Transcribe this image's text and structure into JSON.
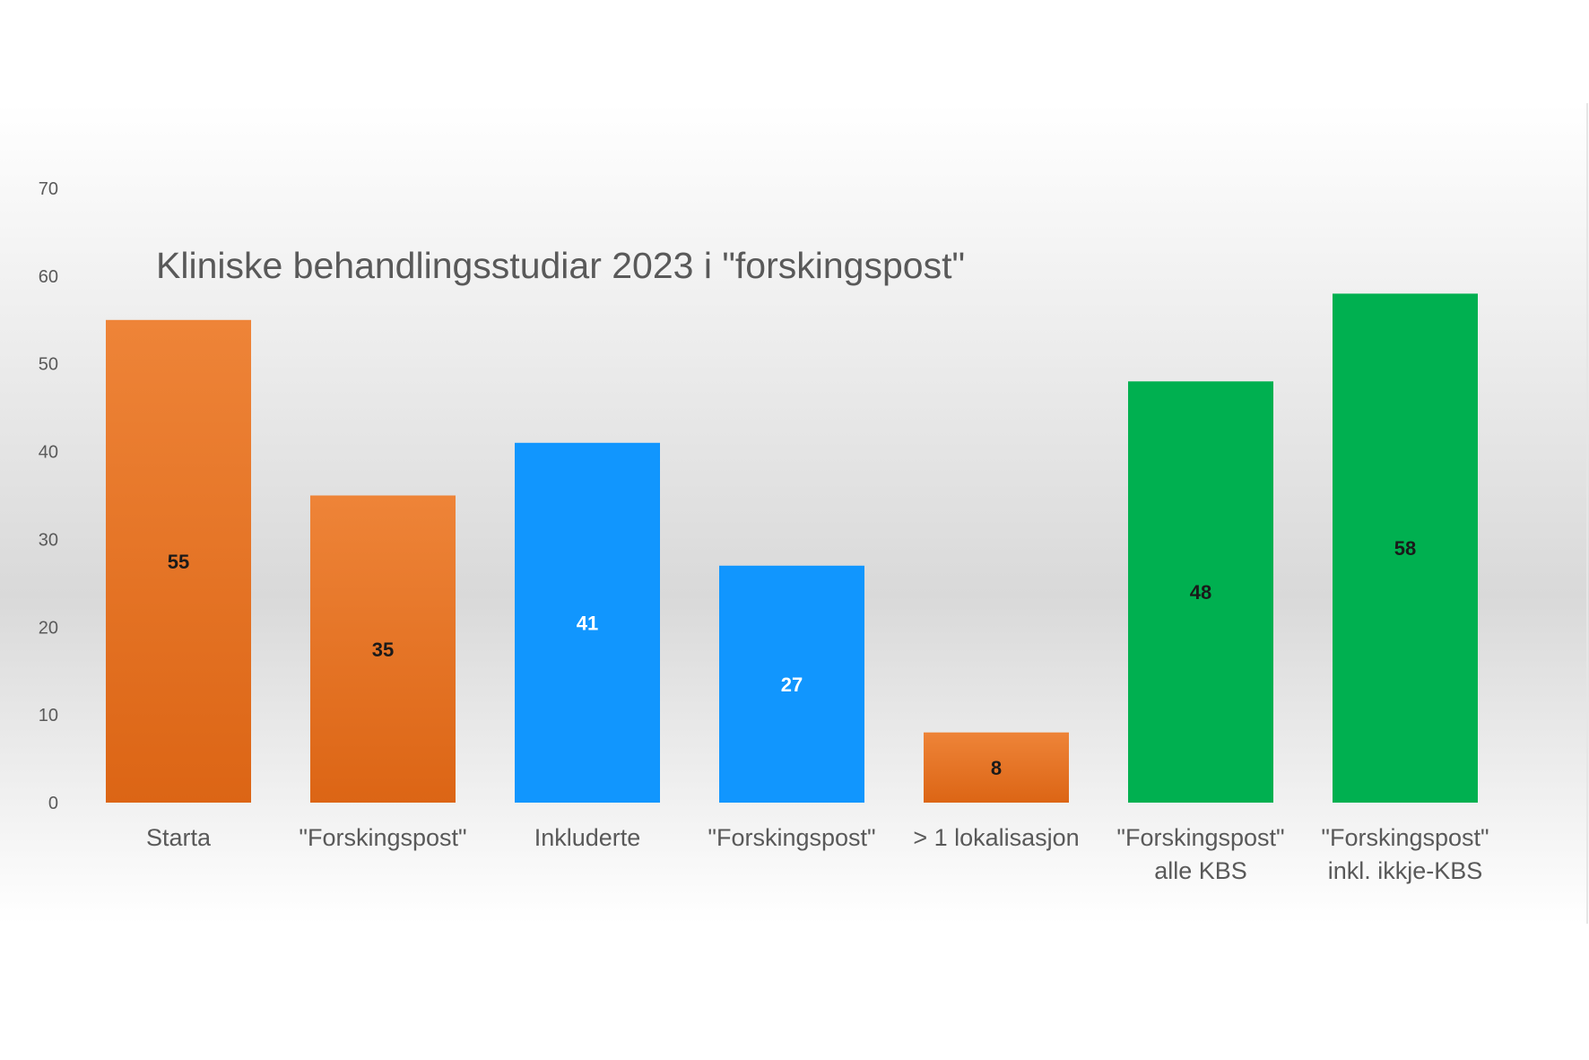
{
  "chart_data": {
    "type": "bar",
    "title": "Kliniske behandlingsstudiar 2023 i \"forskingspost\"",
    "xlabel": "",
    "ylabel": "",
    "ylim": [
      0,
      70
    ],
    "yticks": [
      0,
      10,
      20,
      30,
      40,
      50,
      60,
      70
    ],
    "grid": false,
    "categories": [
      [
        "Starta"
      ],
      [
        "\"Forskingspost\""
      ],
      [
        "Inkluderte"
      ],
      [
        "\"Forskingspost\""
      ],
      [
        "> 1  lokalisasjon"
      ],
      [
        "\"Forskingspost\"",
        "alle KBS"
      ],
      [
        "\"Forskingspost\"",
        "inkl. ikkje-KBS"
      ]
    ],
    "values": [
      55,
      35,
      41,
      27,
      8,
      48,
      58
    ],
    "bar_colors": [
      "orange",
      "orange",
      "blue",
      "blue",
      "orange",
      "green",
      "green"
    ],
    "colors": {
      "orange_top": "#ee8438",
      "orange_bottom": "#dc6515",
      "blue": "#1196fe",
      "green": "#00b050",
      "label_dark": "#1a1a1a",
      "label_light": "#ffffff"
    }
  }
}
